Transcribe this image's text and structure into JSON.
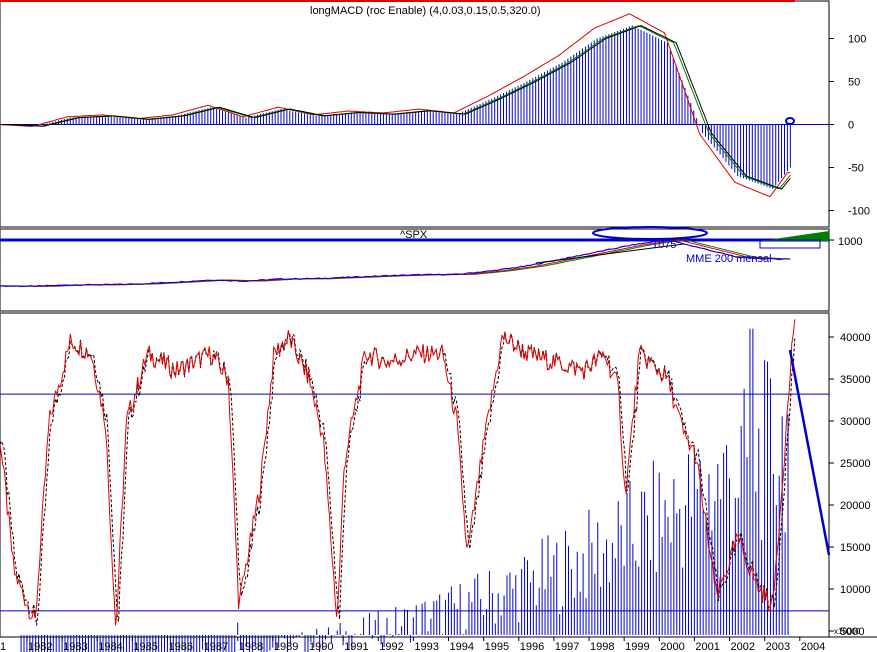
{
  "colors": {
    "red": "#e00000",
    "blue": "#0000cc",
    "green": "#008000",
    "black": "#000000",
    "magenta": "#cc00cc"
  },
  "panel1": {
    "title": "longMACD (roc Enable) (4,0.03,0.15,0.5,320.0)",
    "yticks": [
      "100",
      "50",
      "0",
      "-50",
      "-100"
    ]
  },
  "panel2": {
    "title": "^SPX",
    "ytick": "1000",
    "annot_level": "1075",
    "annot_mme": "MME 200 mensal"
  },
  "panel3": {
    "yticks": [
      "40000",
      "35000",
      "30000",
      "25000",
      "20000",
      "15000",
      "10000",
      "5000"
    ],
    "unit": "x10000"
  },
  "xaxis": {
    "labels": [
      "1",
      "1982",
      "1983",
      "1984",
      "1985",
      "1986",
      "1987",
      "1988",
      "1989",
      "1990",
      "1991",
      "1992",
      "1993",
      "1994",
      "1995",
      "1996",
      "1997",
      "1998",
      "1999",
      "2000",
      "2001",
      "2002",
      "2003",
      "2004"
    ]
  },
  "chart_data": [
    {
      "type": "bar",
      "panel": "MACD",
      "x_range": [
        1981.0,
        2004.6
      ],
      "ylim": [
        -115,
        145
      ],
      "series": [
        {
          "values_x": [
            1981,
            1982,
            1983,
            1984,
            1985,
            1986,
            1987,
            1988,
            1989,
            1990,
            1991,
            1992,
            1993,
            1994,
            1995,
            1996,
            1997,
            1998,
            1999,
            2000,
            2001,
            2002,
            2003,
            2003.5
          ],
          "values_y": [
            0,
            -2,
            8,
            10,
            6,
            10,
            20,
            8,
            18,
            10,
            14,
            12,
            16,
            12,
            30,
            50,
            72,
            100,
            115,
            95,
            -10,
            -60,
            -75,
            -50
          ]
        }
      ]
    },
    {
      "type": "line",
      "panel": "SPX",
      "x_range": [
        1981.0,
        2004.6
      ],
      "series": [
        {
          "x": [
            1981,
            1982,
            1983,
            1984,
            1985,
            1986,
            1987,
            1988,
            1989,
            1990,
            1991,
            1992,
            1993,
            1994,
            1995,
            1996,
            1997,
            1998,
            1999,
            2000,
            2001,
            2002,
            2003
          ],
          "y": [
            130,
            120,
            160,
            165,
            190,
            240,
            300,
            270,
            330,
            340,
            380,
            420,
            450,
            460,
            560,
            700,
            900,
            1100,
            1300,
            1450,
            1200,
            950,
            900
          ]
        }
      ]
    },
    {
      "type": "line",
      "panel": "Oscillator / Volume",
      "x_range": [
        1981.0,
        2004.6
      ],
      "ylim": [
        2000,
        43000
      ],
      "hlines": [
        33200,
        7400
      ],
      "series": [
        {
          "x": [
            1981,
            1981.4,
            1982.0,
            1982.4,
            1983.0,
            1983.6,
            1984.0,
            1984.3,
            1984.6,
            1985.2,
            1986.0,
            1987.0,
            1987.5,
            1987.8,
            1988.4,
            1988.8,
            1989.2,
            1989.8,
            1990.2,
            1990.6,
            1990.8,
            1991.4,
            1992.0,
            1992.8,
            1993.6,
            1994.0,
            1994.3,
            1994.8,
            1995.3,
            1996.0,
            1996.8,
            1997.6,
            1998.2,
            1998.6,
            1998.8,
            1999.2,
            2000.0,
            2000.5,
            2000.8,
            2001.4,
            2002.0,
            2002.6,
            2003.0,
            2003.4,
            2003.6
          ],
          "y": [
            28000,
            12000,
            6000,
            30000,
            39500,
            38000,
            30000,
            5000,
            30000,
            38000,
            36000,
            38000,
            35000,
            8000,
            22000,
            38000,
            40000,
            35000,
            28000,
            6000,
            25000,
            38000,
            37000,
            38000,
            38000,
            30000,
            14000,
            28000,
            40000,
            38000,
            37000,
            36000,
            38000,
            34000,
            21000,
            38000,
            35000,
            28000,
            26000,
            9000,
            16000,
            10000,
            8000,
            30000,
            42000
          ]
        }
      ]
    }
  ]
}
